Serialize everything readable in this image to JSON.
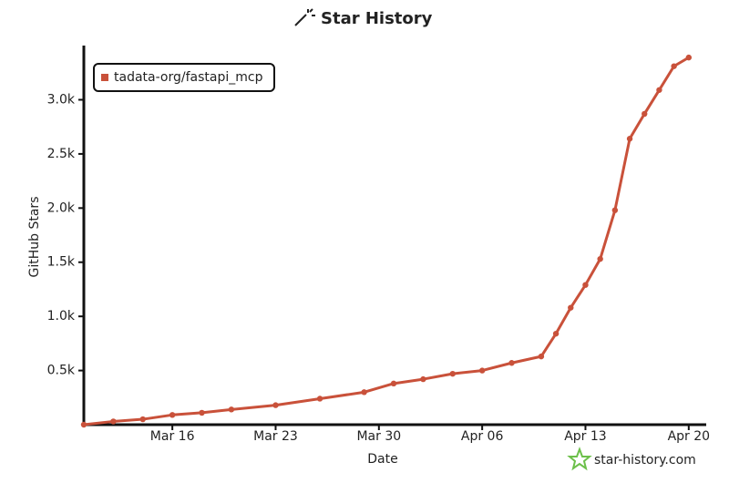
{
  "chart_data": {
    "type": "line",
    "title": "Star History",
    "x_label": "Date",
    "y_label": "GitHub Stars",
    "watermark": "star-history.com",
    "x": [
      "Mar 10",
      "Mar 12",
      "Mar 14",
      "Mar 16",
      "Mar 18",
      "Mar 20",
      "Mar 23",
      "Mar 26",
      "Mar 29",
      "Mar 31",
      "Apr 02",
      "Apr 04",
      "Apr 06",
      "Apr 08",
      "Apr 10",
      "Apr 11",
      "Apr 12",
      "Apr 13",
      "Apr 14",
      "Apr 15",
      "Apr 16",
      "Apr 17",
      "Apr 18",
      "Apr 19",
      "Apr 20"
    ],
    "series": [
      {
        "name": "tadata-org/fastapi_mcp",
        "color": "#c9513a",
        "values": [
          0,
          30,
          50,
          90,
          110,
          140,
          180,
          240,
          300,
          380,
          420,
          470,
          500,
          570,
          630,
          840,
          1080,
          1290,
          1530,
          1980,
          2640,
          2870,
          3090,
          3310,
          3390
        ]
      }
    ],
    "xlim": [
      "Mar 10",
      "Apr 21"
    ],
    "xticks": [
      "Mar 16",
      "Mar 23",
      "Mar 30",
      "Apr 06",
      "Apr 13",
      "Apr 20"
    ],
    "ylim": [
      0,
      3450
    ],
    "yticks": [
      {
        "value": 500,
        "label": "0.5k"
      },
      {
        "value": 1000,
        "label": "1.0k"
      },
      {
        "value": 1500,
        "label": "1.5k"
      },
      {
        "value": 2000,
        "label": "2.0k"
      },
      {
        "value": 2500,
        "label": "2.5k"
      },
      {
        "value": 3000,
        "label": "3.0k"
      }
    ],
    "legend": "top-left"
  }
}
